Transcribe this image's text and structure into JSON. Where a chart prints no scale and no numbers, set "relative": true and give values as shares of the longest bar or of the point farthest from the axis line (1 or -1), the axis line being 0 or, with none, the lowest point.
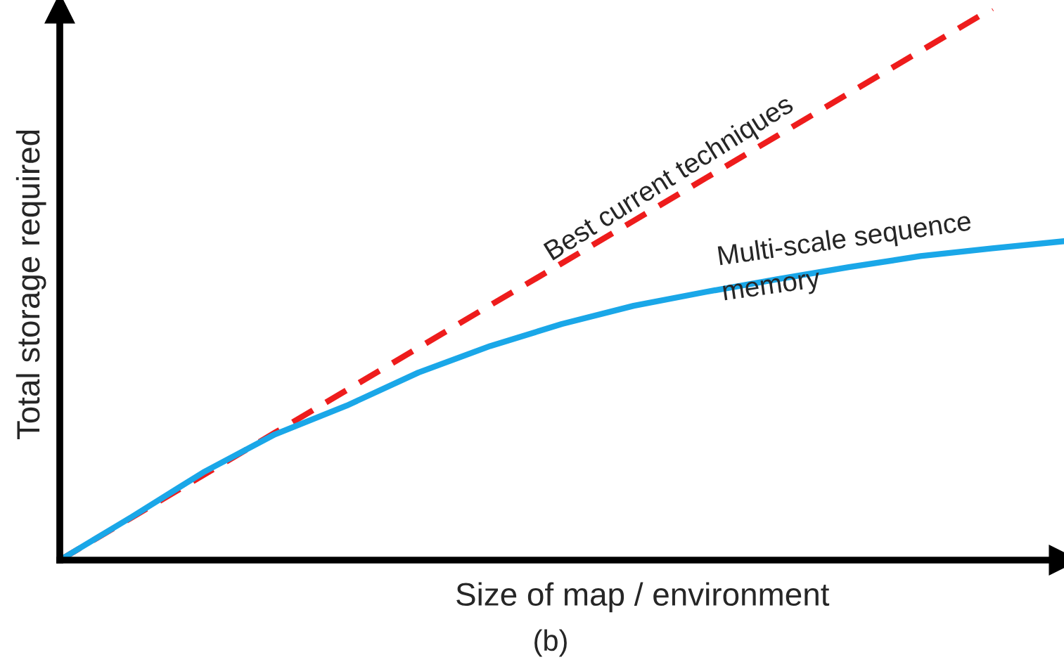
{
  "chart_data": {
    "type": "line",
    "relative": true,
    "xlabel": "Size of map / environment",
    "ylabel": "Total storage required",
    "categories": [
      null,
      null,
      null,
      null,
      null,
      null,
      null,
      null,
      null,
      null,
      null,
      null,
      null,
      null,
      null
    ],
    "series": [
      {
        "name": "Best current techniques",
        "color": "#ee1c1c",
        "line_style": "dashed",
        "values": [
          0,
          0.077,
          0.154,
          0.231,
          0.308,
          0.385,
          0.462,
          0.538,
          0.615,
          0.692,
          0.769,
          0.846,
          0.923,
          1,
          null
        ]
      },
      {
        "name": "Multi-scale sequence\nmemory",
        "color": "#1aa7e8",
        "line_style": "solid",
        "values": [
          0,
          0.078,
          0.159,
          0.228,
          0.28,
          0.34,
          0.388,
          0.428,
          0.461,
          0.486,
          0.509,
          0.531,
          0.551,
          0.565,
          0.578
        ]
      }
    ],
    "annotations": [
      "(b)"
    ]
  }
}
